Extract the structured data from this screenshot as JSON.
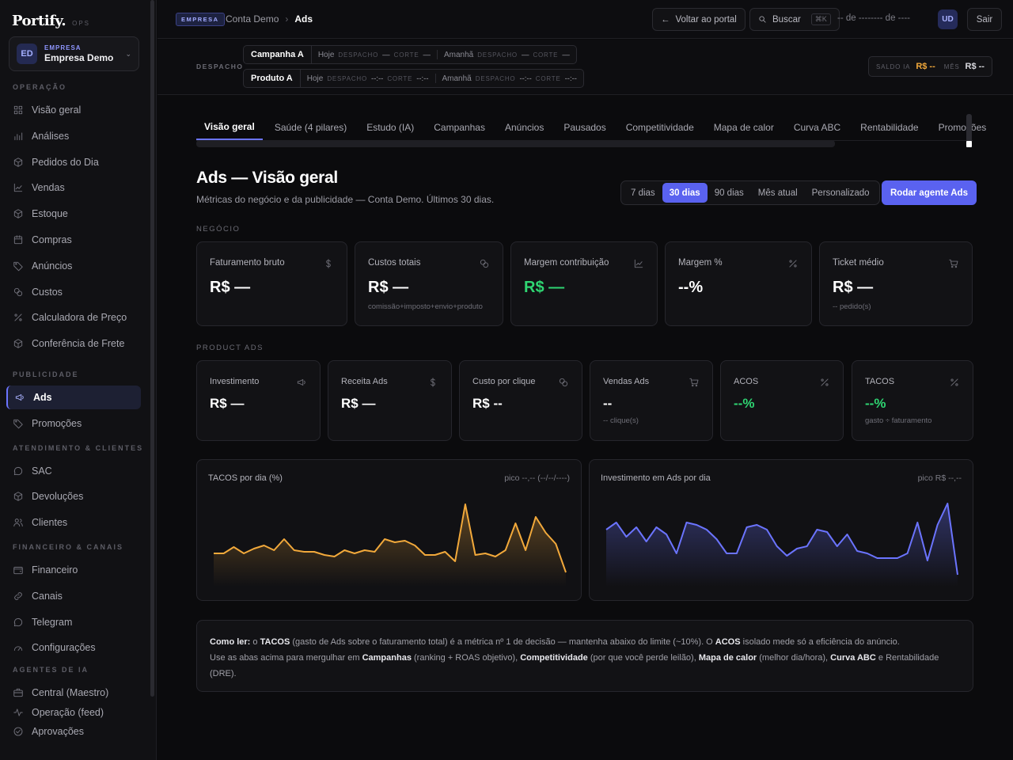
{
  "brand": {
    "name": "Portify.",
    "sub": "OPS"
  },
  "org": {
    "initials": "ED",
    "label": "EMPRESA",
    "name": "Empresa Demo"
  },
  "sidebar": {
    "sections": [
      {
        "title": "OPERAÇÃO",
        "items": [
          {
            "label": "Visão geral",
            "icon": "grid-icon"
          },
          {
            "label": "Análises",
            "icon": "bar-chart-icon"
          },
          {
            "label": "Pedidos do Dia",
            "icon": "box-icon"
          },
          {
            "label": "Vendas",
            "icon": "trend-icon"
          },
          {
            "label": "Estoque",
            "icon": "box-icon"
          },
          {
            "label": "Compras",
            "icon": "calendar-icon"
          },
          {
            "label": "Anúncios",
            "icon": "tag-icon"
          },
          {
            "label": "Custos",
            "icon": "coins-icon"
          },
          {
            "label": "Calculadora de Preço",
            "icon": "percent-icon"
          },
          {
            "label": "Conferência de Frete",
            "icon": "box-icon"
          }
        ]
      },
      {
        "title": "PUBLICIDADE",
        "items": [
          {
            "label": "Ads",
            "icon": "megaphone-icon",
            "active": true
          },
          {
            "label": "Promoções",
            "icon": "tag-icon"
          }
        ]
      },
      {
        "title": "ATENDIMENTO & CLIENTES",
        "items": [
          {
            "label": "SAC",
            "icon": "chat-icon"
          },
          {
            "label": "Devoluções",
            "icon": "box-icon"
          },
          {
            "label": "Clientes",
            "icon": "users-icon"
          }
        ]
      },
      {
        "title": "FINANCEIRO & CANAIS",
        "items": [
          {
            "label": "Financeiro",
            "icon": "wallet-icon"
          },
          {
            "label": "Canais",
            "icon": "link-icon"
          },
          {
            "label": "Telegram",
            "icon": "chat-icon"
          },
          {
            "label": "Configurações",
            "icon": "gauge-icon"
          }
        ]
      },
      {
        "title": "AGENTES DE IA",
        "items": [
          {
            "label": "Central (Maestro)",
            "icon": "briefcase-icon"
          },
          {
            "label": "Operação (feed)",
            "icon": "pulse-icon"
          },
          {
            "label": "Aprovações",
            "icon": "check-circle-icon"
          }
        ]
      }
    ]
  },
  "topbar": {
    "badge": "EMPRESA",
    "crumb_parent": "Conta Demo",
    "crumb_sep": "›",
    "crumb_current": "Ads",
    "back_label": "Voltar ao portal",
    "search_label": "Buscar",
    "search_kbd": "⌘K",
    "date_text": "-- de -------- de ----",
    "user_initials": "UD",
    "logout_label": "Sair"
  },
  "dispatch": {
    "label": "DESPACHO",
    "rows": [
      {
        "product": "Campanha A",
        "today": "Hoje",
        "tomorrow": "Amanhã",
        "k_despacho": "DESPACHO",
        "k_corte": "CORTE",
        "t_despacho": "—",
        "t_corte": "—",
        "m_despacho": "—",
        "m_corte": "—"
      },
      {
        "product": "Produto A",
        "today": "Hoje",
        "tomorrow": "Amanhã",
        "k_despacho": "DESPACHO",
        "k_corte": "CORTE",
        "t_despacho": "--:--",
        "t_corte": "--:--",
        "m_despacho": "--:--",
        "m_corte": "--:--"
      }
    ],
    "saldo_label": "SALDO IA",
    "saldo_value": "R$ --",
    "mes_label": "MÊS",
    "mes_value": "R$ --"
  },
  "tabs": [
    "Visão geral",
    "Saúde (4 pilares)",
    "Estudo (IA)",
    "Campanhas",
    "Anúncios",
    "Pausados",
    "Competitividade",
    "Mapa de calor",
    "Curva ABC",
    "Rentabilidade",
    "Promoções"
  ],
  "page": {
    "title": "Ads — Visão geral",
    "subtitle": "Métricas do negócio e da publicidade — Conta Demo. Últimos 30 dias.",
    "ranges": [
      "7 dias",
      "30 dias",
      "90 dias",
      "Mês atual",
      "Personalizado"
    ],
    "active_range": "30 dias",
    "run_label": "Rodar agente Ads"
  },
  "negocio": {
    "label": "NEGÓCIO",
    "cards": [
      {
        "title": "Faturamento bruto",
        "value": "R$ —",
        "sub": "",
        "icon": "dollar-icon"
      },
      {
        "title": "Custos totais",
        "value": "R$ —",
        "sub": "comissão+imposto+envio+produto",
        "icon": "coins-icon"
      },
      {
        "title": "Margem contribuição",
        "value": "R$ —",
        "sub": "",
        "icon": "trend-icon"
      },
      {
        "title": "Margem %",
        "value": "--%",
        "sub": "",
        "icon": "percent-icon"
      },
      {
        "title": "Ticket médio",
        "value": "R$ —",
        "sub": "-- pedido(s)",
        "icon": "cart-icon"
      }
    ]
  },
  "product_ads": {
    "label": "PRODUCT ADS",
    "cards": [
      {
        "title": "Investimento",
        "value": "R$ —",
        "sub": "",
        "icon": "megaphone-icon"
      },
      {
        "title": "Receita Ads",
        "value": "R$ —",
        "sub": "",
        "icon": "dollar-icon"
      },
      {
        "title": "Custo por clique",
        "value": "R$ --",
        "sub": "",
        "icon": "coins-icon"
      },
      {
        "title": "Vendas Ads",
        "value": "--",
        "sub": "-- clique(s)",
        "icon": "cart-icon"
      },
      {
        "title": "ACOS",
        "value": "--%",
        "sub": "",
        "icon": "percent-icon"
      },
      {
        "title": "TACOS",
        "value": "--%",
        "sub": "gasto ÷ faturamento",
        "icon": "percent-icon"
      }
    ]
  },
  "colors": {
    "accent": "#5a62f0",
    "green": "#2fd572",
    "orange": "#f2a93b",
    "blue": "#6b74ff"
  },
  "chart_data": [
    {
      "type": "area",
      "title": "TACOS por dia (%)",
      "peak_label": "pico --,-- (--/--/----)",
      "color": "#f2a93b",
      "values": [
        10.5,
        10.5,
        12.5,
        10.5,
        12,
        13,
        11.5,
        15,
        11.5,
        11,
        11,
        10,
        9.5,
        11.5,
        10.5,
        11.5,
        11,
        15,
        14,
        14.5,
        13,
        10,
        10,
        11,
        8,
        26,
        10,
        10.5,
        9.5,
        11.5,
        20,
        11.5,
        22,
        17,
        13.5,
        4.5
      ],
      "ylim": [
        0,
        30
      ]
    },
    {
      "type": "area",
      "title": "Investimento em Ads por dia",
      "peak_label": "pico R$ --,--",
      "color": "#6b74ff",
      "values": [
        24,
        27,
        21,
        25,
        19,
        25,
        22,
        14,
        27,
        26,
        24,
        20,
        14,
        14,
        25,
        26,
        24,
        17,
        13,
        16,
        17,
        24,
        23,
        17,
        22,
        15,
        14,
        12,
        12,
        12,
        14,
        27,
        11,
        26,
        35,
        5
      ],
      "ylim": [
        0,
        40
      ]
    }
  ],
  "help": {
    "bold_lead": "Como ler:",
    "line1_a": "o",
    "line1_b": "TACOS",
    "line1_c": "(gasto de Ads sobre o faturamento total) é a métrica nº 1 de decisão — mantenha abaixo do limite (~10%). O",
    "line1_d": "ACOS",
    "line1_e": "isolado mede só a eficiência do anúncio.",
    "line2_a": "Use as abas acima para mergulhar em",
    "line2_b": "Campanhas",
    "line2_c": "(ranking + ROAS objetivo),",
    "line2_d": "Competitividade",
    "line2_e": "(por que você perde leilão),",
    "line2_f": "Mapa de calor",
    "line2_g": "(melhor dia/hora),",
    "line2_h": "Curva ABC",
    "line2_i": "e Rentabilidade (DRE)."
  }
}
